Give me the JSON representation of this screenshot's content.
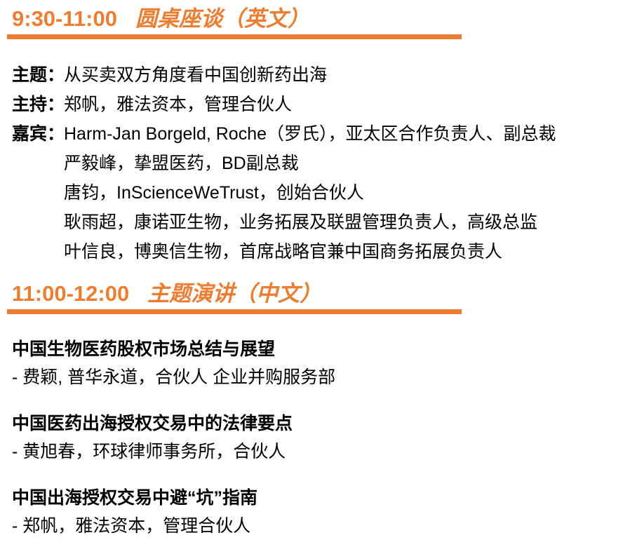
{
  "accent_color": "#ED7D31",
  "text_color": "#000000",
  "sessions": [
    {
      "time": "9:30-11:00",
      "title": "圆桌座谈（英文）",
      "fields": [
        {
          "label": "主题：",
          "value": "从买卖双方角度看中国创新药出海"
        },
        {
          "label": "主持：",
          "value": "郑帆，雅法资本，管理合伙人"
        },
        {
          "label": "嘉宾：",
          "value": "Harm-Jan Borgeld, Roche（罗氏），亚太区合作负责人、副总裁"
        }
      ],
      "guests_extra": [
        "严毅峰，挚盟医药，BD副总裁",
        "唐钧，InScienceWeTrust，创始合伙人",
        "耿雨超，康诺亚生物，业务拓展及联盟管理负责人，高级总监",
        "叶信良，博奥信生物，首席战略官兼中国商务拓展负责人"
      ]
    },
    {
      "time": "11:00-12:00",
      "title": "主题演讲（中文）",
      "talks": [
        {
          "title": "中国生物医药股权市场总结与展望",
          "speaker": "- 费颖, 普华永道，合伙人 企业并购服务部"
        },
        {
          "title": "中国医药出海授权交易中的法律要点",
          "speaker": "- 黄旭春，环球律师事务所，合伙人"
        },
        {
          "title": "中国出海授权交易中避“坑”指南",
          "speaker": "- 郑帆，雅法资本，管理合伙人"
        }
      ]
    }
  ]
}
